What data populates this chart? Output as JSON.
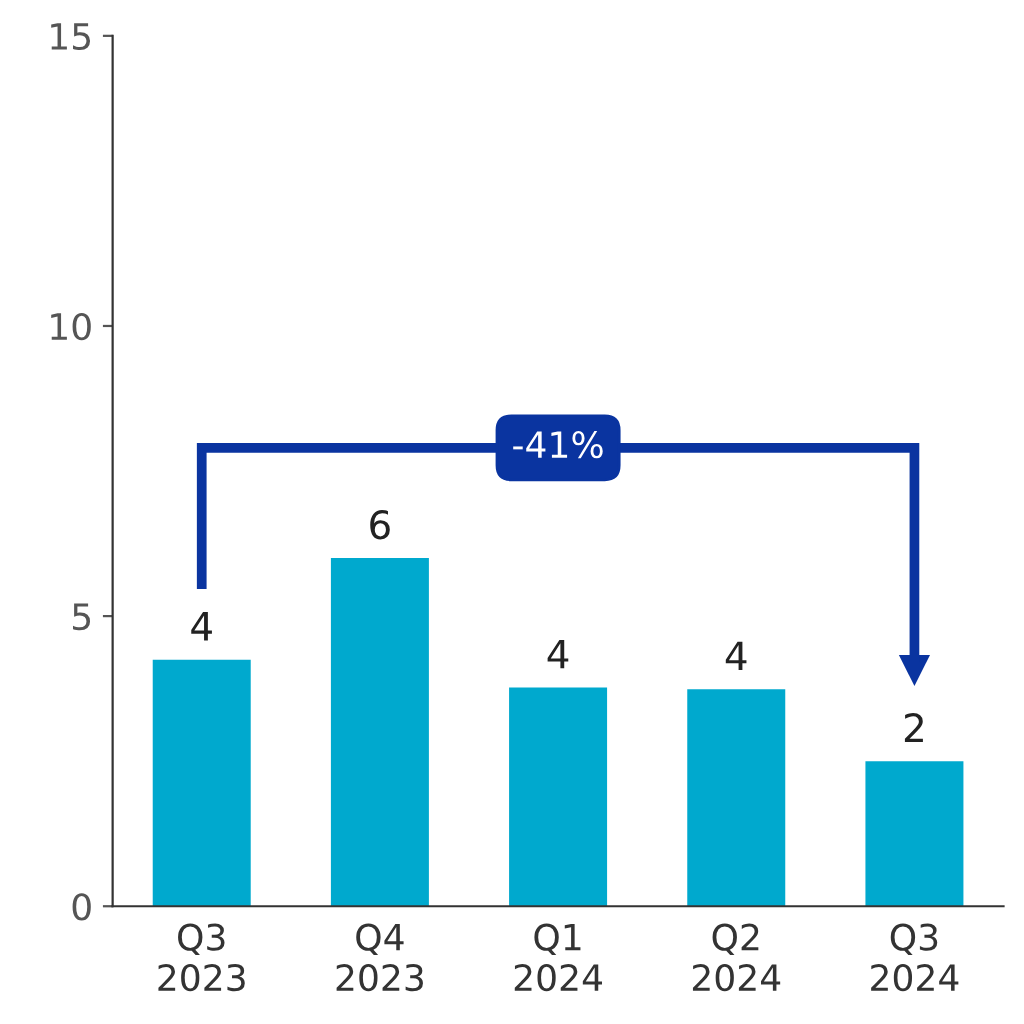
{
  "chart_data": {
    "type": "bar",
    "categories": [
      "Q3\n2023",
      "Q4\n2023",
      "Q1\n2024",
      "Q2\n2024",
      "Q3\n2024"
    ],
    "values": [
      4.25,
      6.0,
      3.77,
      3.74,
      2.5
    ],
    "value_labels": [
      "4",
      "6",
      "4",
      "4",
      "2"
    ],
    "color": "#00a9ce",
    "ylim": [
      0,
      15
    ],
    "yticks": [
      0,
      5,
      10,
      15
    ],
    "grid": false,
    "annotations": [
      "-41%"
    ]
  }
}
